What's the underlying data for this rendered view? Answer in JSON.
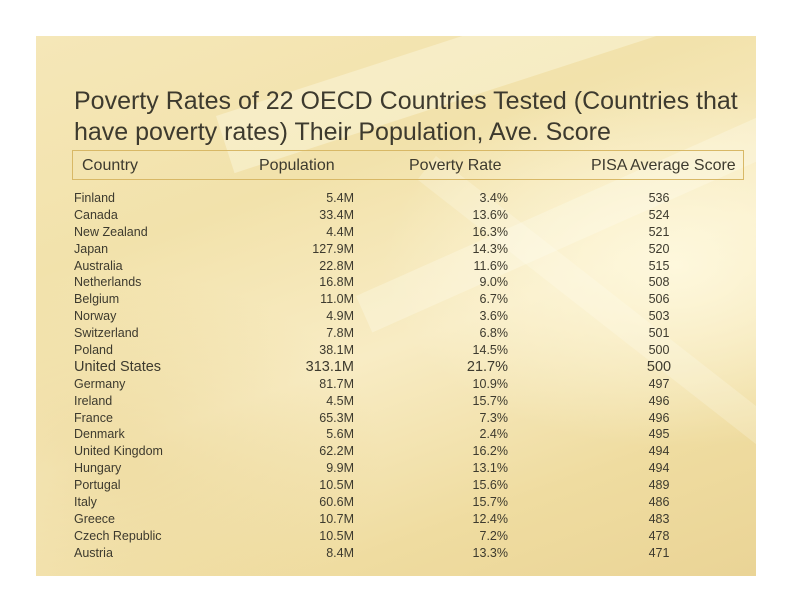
{
  "title": "Poverty Rates of 22 OECD Countries Tested (Countries that have poverty rates) Their Population, Ave. Score",
  "columns": {
    "country": "Country",
    "population": "Population",
    "poverty_rate": "Poverty Rate",
    "pisa": "PISA Average Score"
  },
  "rows": [
    {
      "country": "Finland",
      "population": "5.4M",
      "poverty_rate": "3.4%",
      "pisa": "536"
    },
    {
      "country": "Canada",
      "population": "33.4M",
      "poverty_rate": "13.6%",
      "pisa": "524"
    },
    {
      "country": "New Zealand",
      "population": "4.4M",
      "poverty_rate": "16.3%",
      "pisa": "521"
    },
    {
      "country": "Japan",
      "population": "127.9M",
      "poverty_rate": "14.3%",
      "pisa": "520"
    },
    {
      "country": "Australia",
      "population": "22.8M",
      "poverty_rate": "11.6%",
      "pisa": "515"
    },
    {
      "country": "Netherlands",
      "population": "16.8M",
      "poverty_rate": "9.0%",
      "pisa": "508"
    },
    {
      "country": "Belgium",
      "population": "11.0M",
      "poverty_rate": "6.7%",
      "pisa": "506"
    },
    {
      "country": "Norway",
      "population": "4.9M",
      "poverty_rate": "3.6%",
      "pisa": "503"
    },
    {
      "country": "Switzerland",
      "population": "7.8M",
      "poverty_rate": "6.8%",
      "pisa": "501"
    },
    {
      "country": "Poland",
      "population": "38.1M",
      "poverty_rate": "14.5%",
      "pisa": "500"
    },
    {
      "country": "United States",
      "population": "313.1M",
      "poverty_rate": "21.7%",
      "pisa": "500",
      "highlight": true
    },
    {
      "country": "Germany",
      "population": "81.7M",
      "poverty_rate": "10.9%",
      "pisa": "497"
    },
    {
      "country": "Ireland",
      "population": "4.5M",
      "poverty_rate": "15.7%",
      "pisa": "496"
    },
    {
      "country": "France",
      "population": "65.3M",
      "poverty_rate": "7.3%",
      "pisa": "496"
    },
    {
      "country": "Denmark",
      "population": "5.6M",
      "poverty_rate": "2.4%",
      "pisa": "495"
    },
    {
      "country": "United Kingdom",
      "population": "62.2M",
      "poverty_rate": "16.2%",
      "pisa": "494"
    },
    {
      "country": "Hungary",
      "population": "9.9M",
      "poverty_rate": "13.1%",
      "pisa": "494"
    },
    {
      "country": "Portugal",
      "population": "10.5M",
      "poverty_rate": "15.6%",
      "pisa": "489"
    },
    {
      "country": "Italy",
      "population": "60.6M",
      "poverty_rate": "15.7%",
      "pisa": "486"
    },
    {
      "country": "Greece",
      "population": "10.7M",
      "poverty_rate": "12.4%",
      "pisa": "483"
    },
    {
      "country": "Czech Republic",
      "population": "10.5M",
      "poverty_rate": "7.2%",
      "pisa": "478"
    },
    {
      "country": "Austria",
      "population": "8.4M",
      "poverty_rate": "13.3%",
      "pisa": "471"
    }
  ],
  "colors": {
    "text": "#3d3a2e",
    "header_border": "#d8b866",
    "background": "#f3e4b0"
  }
}
